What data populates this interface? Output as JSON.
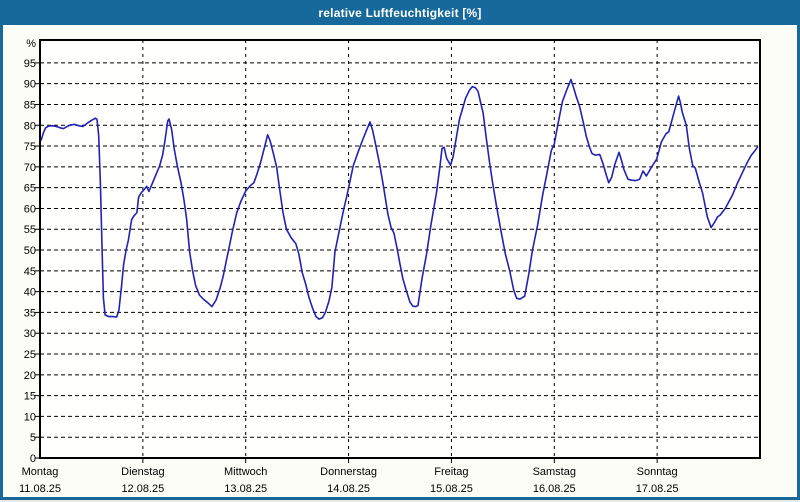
{
  "window": {
    "title": "relative Luftfeuchtigkeit [%]"
  },
  "colors": {
    "frame": "#17689b",
    "title_text": "#ffffff",
    "content_bg": "#fdfdf8",
    "plot_bg": "#fffffd",
    "grid": "#000000",
    "axis": "#000000",
    "line": "#2222b2"
  },
  "chart_data": {
    "type": "line",
    "title": "relative Luftfeuchtigkeit [%]",
    "ylabel": "relative Luftfeuchtigkeit",
    "y_axis": {
      "unit_label": "%",
      "min": 0,
      "max": 100.5,
      "tick_step": 5,
      "tick_labels": [
        "0",
        "5",
        "10",
        "15",
        "20",
        "25",
        "30",
        "35",
        "40",
        "45",
        "50",
        "55",
        "60",
        "65",
        "70",
        "75",
        "80",
        "85",
        "90",
        "95"
      ],
      "gridlines": "horizontal dashed black every 5 from 5 to 95"
    },
    "x_axis": {
      "span": "7 days, Montag 11.08.25 00:00 bis Sonntag 17.08.25 24:00",
      "hours_total": 168,
      "day_boundaries_hours": [
        24,
        48,
        72,
        96,
        120,
        144
      ],
      "days": [
        {
          "label": "Montag",
          "date": "11.08.25"
        },
        {
          "label": "Dienstag",
          "date": "12.08.25"
        },
        {
          "label": "Mittwoch",
          "date": "13.08.25"
        },
        {
          "label": "Donnerstag",
          "date": "14.08.25"
        },
        {
          "label": "Freitag",
          "date": "15.08.25"
        },
        {
          "label": "Samstag",
          "date": "16.08.25"
        },
        {
          "label": "Sonntag",
          "date": "17.08.25"
        }
      ],
      "gridlines": "vertical dashed black at each day boundary"
    },
    "legend": "none",
    "series": [
      {
        "name": "relative Luftfeuchtigkeit [%]",
        "color": "#2222b2",
        "points": [
          [
            0.3,
            76.5
          ],
          [
            0.8,
            78.2
          ],
          [
            1.3,
            79.4
          ],
          [
            2.0,
            79.8
          ],
          [
            2.9,
            79.9
          ],
          [
            3.8,
            79.7
          ],
          [
            4.7,
            79.4
          ],
          [
            5.5,
            79.2
          ],
          [
            6.3,
            79.7
          ],
          [
            7.2,
            80.1
          ],
          [
            8.1,
            80.2
          ],
          [
            9.0,
            79.9
          ],
          [
            10.0,
            79.7
          ],
          [
            10.9,
            80.4
          ],
          [
            11.9,
            81.1
          ],
          [
            12.9,
            81.7
          ],
          [
            13.3,
            81.4
          ],
          [
            13.7,
            77.5
          ],
          [
            14.1,
            66.0
          ],
          [
            14.5,
            50.0
          ],
          [
            14.8,
            38.5
          ],
          [
            15.2,
            34.4
          ],
          [
            16.0,
            34.0
          ],
          [
            16.9,
            34.0
          ],
          [
            17.9,
            33.9
          ],
          [
            18.4,
            35.5
          ],
          [
            19.0,
            41.0
          ],
          [
            19.5,
            46.5
          ],
          [
            20.1,
            50.0
          ],
          [
            20.6,
            52.3
          ],
          [
            21.4,
            57.4
          ],
          [
            22.0,
            58.3
          ],
          [
            22.6,
            59.0
          ],
          [
            23.0,
            62.7
          ],
          [
            23.7,
            63.9
          ],
          [
            24.0,
            64.2
          ],
          [
            24.9,
            65.3
          ],
          [
            25.4,
            64.1
          ],
          [
            26.2,
            66.0
          ],
          [
            27.0,
            68.0
          ],
          [
            27.9,
            70.2
          ],
          [
            28.6,
            72.8
          ],
          [
            29.2,
            76.5
          ],
          [
            29.8,
            81.0
          ],
          [
            30.1,
            81.5
          ],
          [
            30.7,
            79.0
          ],
          [
            31.3,
            74.5
          ],
          [
            32.0,
            70.5
          ],
          [
            32.9,
            66.2
          ],
          [
            33.6,
            62.0
          ],
          [
            34.2,
            57.5
          ],
          [
            34.9,
            49.6
          ],
          [
            35.6,
            45.0
          ],
          [
            36.3,
            41.5
          ],
          [
            37.2,
            39.2
          ],
          [
            38.2,
            38.1
          ],
          [
            39.2,
            37.3
          ],
          [
            40.1,
            36.4
          ],
          [
            41.1,
            38.0
          ],
          [
            42.0,
            40.8
          ],
          [
            42.7,
            43.5
          ],
          [
            43.5,
            47.5
          ],
          [
            44.1,
            50.5
          ],
          [
            44.9,
            54.5
          ],
          [
            45.9,
            58.9
          ],
          [
            46.9,
            61.8
          ],
          [
            48.0,
            64.2
          ],
          [
            49.0,
            65.4
          ],
          [
            49.9,
            66.2
          ],
          [
            50.7,
            68.5
          ],
          [
            51.6,
            71.5
          ],
          [
            52.4,
            74.8
          ],
          [
            53.1,
            77.7
          ],
          [
            53.7,
            76.3
          ],
          [
            54.5,
            73.0
          ],
          [
            55.2,
            70.0
          ],
          [
            56.0,
            64.0
          ],
          [
            56.7,
            59.0
          ],
          [
            57.5,
            55.0
          ],
          [
            58.6,
            53.0
          ],
          [
            59.7,
            51.5
          ],
          [
            60.4,
            49.0
          ],
          [
            61.2,
            44.5
          ],
          [
            62.0,
            41.8
          ],
          [
            62.8,
            38.5
          ],
          [
            63.6,
            36.0
          ],
          [
            64.4,
            34.0
          ],
          [
            65.1,
            33.4
          ],
          [
            65.9,
            33.7
          ],
          [
            66.6,
            35.0
          ],
          [
            67.4,
            37.7
          ],
          [
            68.1,
            41.0
          ],
          [
            68.8,
            49.5
          ],
          [
            69.9,
            55.0
          ],
          [
            70.9,
            60.0
          ],
          [
            71.5,
            62.5
          ],
          [
            72.0,
            65.0
          ],
          [
            73.1,
            70.3
          ],
          [
            74.2,
            73.5
          ],
          [
            75.1,
            76.0
          ],
          [
            76.0,
            78.3
          ],
          [
            77.0,
            80.8
          ],
          [
            77.6,
            78.8
          ],
          [
            78.2,
            76.0
          ],
          [
            79.3,
            70.3
          ],
          [
            80.2,
            65.0
          ],
          [
            81.2,
            58.5
          ],
          [
            81.9,
            55.5
          ],
          [
            82.6,
            54.0
          ],
          [
            83.3,
            50.5
          ],
          [
            84.0,
            46.6
          ],
          [
            84.7,
            43.0
          ],
          [
            85.4,
            40.5
          ],
          [
            86.3,
            37.5
          ],
          [
            87.0,
            36.5
          ],
          [
            87.7,
            36.4
          ],
          [
            88.2,
            36.7
          ],
          [
            89.1,
            43.0
          ],
          [
            90.2,
            49.1
          ],
          [
            91.2,
            56.0
          ],
          [
            92.5,
            63.7
          ],
          [
            93.3,
            70.0
          ],
          [
            93.8,
            74.4
          ],
          [
            94.3,
            74.7
          ],
          [
            94.9,
            72.0
          ],
          [
            95.8,
            70.4
          ],
          [
            96.4,
            72.5
          ],
          [
            96.8,
            75.0
          ],
          [
            97.3,
            78.0
          ],
          [
            97.9,
            81.6
          ],
          [
            98.6,
            84.0
          ],
          [
            99.3,
            86.5
          ],
          [
            100.2,
            88.4
          ],
          [
            100.9,
            89.3
          ],
          [
            101.6,
            89.0
          ],
          [
            102.2,
            88.2
          ],
          [
            102.8,
            85.5
          ],
          [
            103.4,
            83.0
          ],
          [
            104.1,
            77.2
          ],
          [
            104.9,
            71.0
          ],
          [
            105.6,
            66.2
          ],
          [
            106.6,
            60.0
          ],
          [
            107.6,
            54.4
          ],
          [
            108.6,
            49.0
          ],
          [
            109.6,
            45.0
          ],
          [
            110.5,
            40.5
          ],
          [
            111.2,
            38.4
          ],
          [
            112.0,
            38.2
          ],
          [
            113.1,
            38.9
          ],
          [
            114.0,
            44.0
          ],
          [
            114.9,
            49.9
          ],
          [
            116.1,
            56.0
          ],
          [
            117.3,
            63.3
          ],
          [
            118.2,
            68.0
          ],
          [
            119.3,
            73.9
          ],
          [
            120.0,
            75.5
          ],
          [
            120.8,
            80.0
          ],
          [
            121.9,
            85.7
          ],
          [
            122.9,
            88.5
          ],
          [
            123.9,
            91.0
          ],
          [
            124.5,
            89.0
          ],
          [
            125.1,
            87.0
          ],
          [
            125.9,
            84.5
          ],
          [
            126.7,
            81.0
          ],
          [
            127.5,
            77.2
          ],
          [
            128.3,
            74.5
          ],
          [
            128.8,
            73.2
          ],
          [
            129.6,
            72.8
          ],
          [
            130.6,
            73.0
          ],
          [
            131.3,
            71.0
          ],
          [
            132.0,
            68.5
          ],
          [
            132.7,
            66.2
          ],
          [
            133.4,
            67.5
          ],
          [
            134.1,
            70.5
          ],
          [
            135.1,
            73.5
          ],
          [
            135.7,
            71.5
          ],
          [
            136.2,
            69.5
          ],
          [
            137.2,
            67.0
          ],
          [
            138.1,
            66.8
          ],
          [
            139.0,
            66.7
          ],
          [
            139.9,
            67.0
          ],
          [
            140.7,
            69.0
          ],
          [
            141.5,
            67.8
          ],
          [
            142.7,
            70.0
          ],
          [
            143.9,
            71.9
          ],
          [
            145.0,
            76.0
          ],
          [
            146.1,
            78.0
          ],
          [
            146.7,
            78.4
          ],
          [
            147.4,
            81.0
          ],
          [
            148.1,
            83.7
          ],
          [
            149.0,
            87.0
          ],
          [
            149.4,
            85.5
          ],
          [
            149.9,
            83.0
          ],
          [
            150.8,
            80.0
          ],
          [
            151.5,
            74.5
          ],
          [
            152.3,
            70.3
          ],
          [
            152.9,
            69.7
          ],
          [
            153.9,
            66.0
          ],
          [
            154.6,
            63.7
          ],
          [
            155.7,
            58.0
          ],
          [
            156.6,
            55.4
          ],
          [
            157.3,
            56.5
          ],
          [
            158.1,
            58.0
          ],
          [
            158.7,
            58.4
          ],
          [
            159.9,
            60.0
          ],
          [
            161.6,
            63.3
          ],
          [
            162.7,
            66.0
          ],
          [
            163.9,
            68.6
          ],
          [
            165.0,
            71.0
          ],
          [
            165.9,
            72.7
          ],
          [
            166.9,
            74.0
          ],
          [
            167.4,
            74.7
          ]
        ]
      }
    ]
  }
}
